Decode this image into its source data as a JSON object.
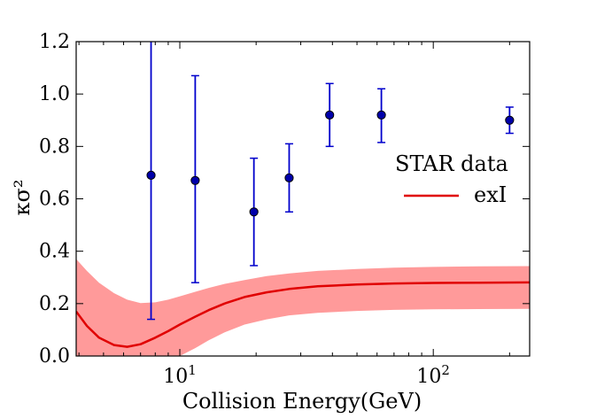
{
  "chart_data": {
    "type": "scatter",
    "title": "",
    "xlabel": "Collision Energy(GeV)",
    "ylabel": "κσ²",
    "xscale": "log",
    "xlim": [
      3.9,
      240
    ],
    "ylim": [
      0.0,
      1.2
    ],
    "yticks": [
      0.0,
      0.2,
      0.4,
      0.6,
      0.8,
      1.0,
      1.2
    ],
    "ytick_labels": [
      "0.0",
      "0.2",
      "0.4",
      "0.6",
      "0.8",
      "1.0",
      "1.2"
    ],
    "xticks": [
      10,
      100
    ],
    "xtick_labels": [
      {
        "base": "10",
        "exp": "1"
      },
      {
        "base": "10",
        "exp": "2"
      }
    ],
    "grid": false,
    "legend": {
      "position": "right",
      "entries": [
        {
          "name": "STAR data",
          "marker": "none"
        },
        {
          "name": "exI",
          "marker": "line"
        }
      ]
    },
    "series": [
      {
        "name": "STAR data",
        "kind": "errorbar",
        "color": "#0000cc",
        "marker_color": "#0000aa",
        "points": [
          {
            "x": 7.7,
            "y": 0.69,
            "lo": 0.14,
            "hi": 1.22
          },
          {
            "x": 11.5,
            "y": 0.67,
            "lo": 0.28,
            "hi": 1.07
          },
          {
            "x": 19.6,
            "y": 0.55,
            "lo": 0.345,
            "hi": 0.755
          },
          {
            "x": 27,
            "y": 0.68,
            "lo": 0.55,
            "hi": 0.81
          },
          {
            "x": 39,
            "y": 0.92,
            "lo": 0.8,
            "hi": 1.04
          },
          {
            "x": 62.4,
            "y": 0.92,
            "lo": 0.815,
            "hi": 1.02
          },
          {
            "x": 200,
            "y": 0.9,
            "lo": 0.85,
            "hi": 0.95
          }
        ]
      },
      {
        "name": "exI",
        "kind": "line_band",
        "color": "#e00000",
        "band_color": "#ff9a9a",
        "points": [
          {
            "x": 3.9,
            "y": 0.17,
            "lo": 0.0,
            "hi": 0.37
          },
          {
            "x": 4.3,
            "y": 0.115,
            "lo": 0.0,
            "hi": 0.325
          },
          {
            "x": 4.8,
            "y": 0.07,
            "lo": 0.0,
            "hi": 0.28
          },
          {
            "x": 5.5,
            "y": 0.042,
            "lo": 0.0,
            "hi": 0.24
          },
          {
            "x": 6.2,
            "y": 0.035,
            "lo": 0.0,
            "hi": 0.215
          },
          {
            "x": 7.0,
            "y": 0.045,
            "lo": 0.0,
            "hi": 0.202
          },
          {
            "x": 8.0,
            "y": 0.07,
            "lo": 0.0,
            "hi": 0.205
          },
          {
            "x": 9.0,
            "y": 0.095,
            "lo": 0.0,
            "hi": 0.215
          },
          {
            "x": 10.0,
            "y": 0.12,
            "lo": 0.0,
            "hi": 0.228
          },
          {
            "x": 11.5,
            "y": 0.15,
            "lo": 0.03,
            "hi": 0.245
          },
          {
            "x": 13.0,
            "y": 0.175,
            "lo": 0.06,
            "hi": 0.26
          },
          {
            "x": 15.0,
            "y": 0.2,
            "lo": 0.09,
            "hi": 0.275
          },
          {
            "x": 18.0,
            "y": 0.225,
            "lo": 0.12,
            "hi": 0.29
          },
          {
            "x": 22.0,
            "y": 0.243,
            "lo": 0.14,
            "hi": 0.305
          },
          {
            "x": 27.0,
            "y": 0.256,
            "lo": 0.155,
            "hi": 0.315
          },
          {
            "x": 35.0,
            "y": 0.266,
            "lo": 0.165,
            "hi": 0.325
          },
          {
            "x": 50.0,
            "y": 0.273,
            "lo": 0.172,
            "hi": 0.332
          },
          {
            "x": 70.0,
            "y": 0.277,
            "lo": 0.176,
            "hi": 0.337
          },
          {
            "x": 100.0,
            "y": 0.279,
            "lo": 0.178,
            "hi": 0.34
          },
          {
            "x": 150.0,
            "y": 0.28,
            "lo": 0.179,
            "hi": 0.342
          },
          {
            "x": 240.0,
            "y": 0.281,
            "lo": 0.18,
            "hi": 0.343
          }
        ]
      }
    ]
  }
}
